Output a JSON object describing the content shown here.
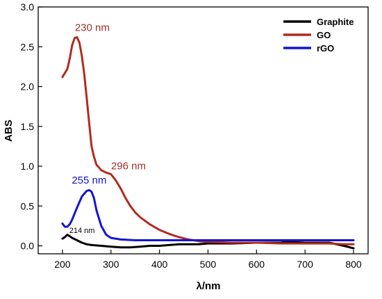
{
  "chart_data": {
    "type": "line",
    "xlabel": "λ/nm",
    "ylabel": "ABS",
    "xlim": [
      150,
      830
    ],
    "ylim": [
      -0.1,
      3.0
    ],
    "xticks": [
      200,
      300,
      400,
      500,
      600,
      700,
      800
    ],
    "yticks": [
      0.0,
      0.5,
      1.0,
      1.5,
      2.0,
      2.5,
      3.0
    ],
    "xtick_labels": [
      "200",
      "300",
      "400",
      "500",
      "600",
      "700",
      "800"
    ],
    "ytick_labels": [
      "0.0",
      "0.5",
      "1.0",
      "1.5",
      "2.0",
      "2.5",
      "3.0"
    ],
    "grid": false,
    "legend_position": "top-right",
    "series": [
      {
        "name": "Graphite",
        "color": "#000000",
        "x": [
          200,
          205,
          210,
          215,
          220,
          230,
          240,
          250,
          260,
          280,
          300,
          320,
          340,
          360,
          380,
          400,
          420,
          440,
          460,
          480,
          500,
          550,
          600,
          650,
          660,
          700,
          750,
          780,
          800
        ],
        "y": [
          0.09,
          0.11,
          0.14,
          0.12,
          0.1,
          0.07,
          0.04,
          0.02,
          0.01,
          0.0,
          -0.01,
          -0.02,
          -0.02,
          -0.01,
          0.0,
          0.0,
          0.01,
          0.02,
          0.02,
          0.02,
          0.03,
          0.03,
          0.04,
          0.04,
          0.05,
          0.04,
          0.04,
          0.0,
          -0.03
        ]
      },
      {
        "name": "GO",
        "color": "#b22a1f",
        "x": [
          200,
          210,
          215,
          220,
          225,
          230,
          235,
          240,
          245,
          250,
          255,
          260,
          265,
          270,
          280,
          290,
          300,
          310,
          320,
          330,
          340,
          350,
          360,
          380,
          400,
          420,
          440,
          460,
          480,
          500,
          550,
          600,
          650,
          700,
          750,
          780,
          800
        ],
        "y": [
          2.12,
          2.22,
          2.35,
          2.52,
          2.61,
          2.62,
          2.55,
          2.38,
          2.15,
          1.85,
          1.55,
          1.25,
          1.12,
          1.02,
          0.95,
          0.92,
          0.9,
          0.82,
          0.72,
          0.6,
          0.5,
          0.42,
          0.36,
          0.27,
          0.2,
          0.15,
          0.11,
          0.08,
          0.06,
          0.05,
          0.04,
          0.04,
          0.03,
          0.03,
          0.03,
          0.02,
          0.02
        ]
      },
      {
        "name": "rGO",
        "color": "#1414d4",
        "x": [
          200,
          205,
          210,
          215,
          220,
          230,
          240,
          250,
          255,
          260,
          265,
          270,
          280,
          290,
          300,
          320,
          350,
          400,
          450,
          500,
          600,
          700,
          800
        ],
        "y": [
          0.28,
          0.24,
          0.24,
          0.27,
          0.33,
          0.48,
          0.62,
          0.69,
          0.7,
          0.68,
          0.6,
          0.45,
          0.25,
          0.14,
          0.1,
          0.08,
          0.07,
          0.07,
          0.07,
          0.07,
          0.07,
          0.07,
          0.07
        ]
      }
    ],
    "annotations": [
      {
        "text": "230 nm",
        "x": 230,
        "y": 2.7,
        "color": "#a0302a",
        "size": "large"
      },
      {
        "text": "296 nm",
        "x": 296,
        "y": 0.96,
        "color": "#a0302a",
        "size": "large"
      },
      {
        "text": "255 nm",
        "x": 255,
        "y": 0.78,
        "color": "#1414d4",
        "size": "large"
      },
      {
        "text": "214 nm",
        "x": 214,
        "y": 0.16,
        "color": "#000000",
        "size": "small"
      }
    ]
  }
}
